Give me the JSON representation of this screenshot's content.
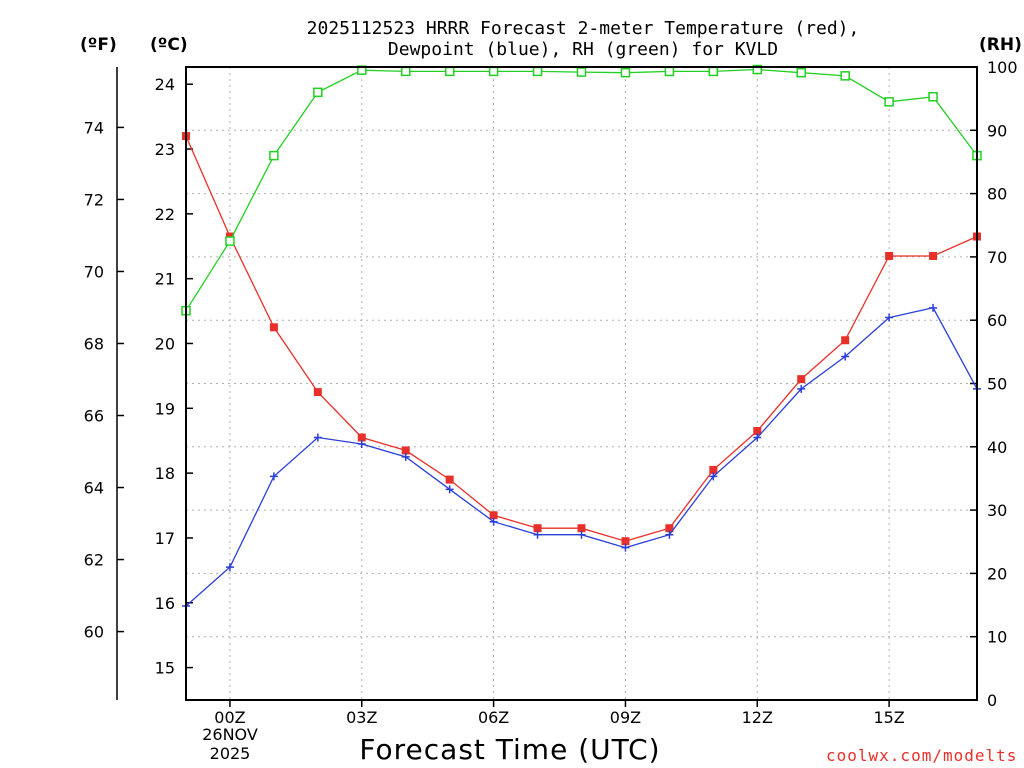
{
  "chart_data": {
    "type": "line",
    "title": "2025112523 HRRR Forecast 2-meter Temperature (red),",
    "subtitle": "Dewpoint (blue), RH (green) for KVLD",
    "xlabel": "Forecast Time (UTC)",
    "credit": "coolwx.com/modelts",
    "units": {
      "fahrenheit": "(ºF)",
      "celsius": "(ºC)",
      "rh": "(RH)"
    },
    "x_hours": [
      -1,
      0,
      1,
      2,
      3,
      4,
      5,
      6,
      7,
      8,
      9,
      10,
      11,
      12,
      13,
      14,
      15,
      16,
      17
    ],
    "x_tick_labels": [
      {
        "hour": 0,
        "label": "00Z"
      },
      {
        "hour": 3,
        "label": "03Z"
      },
      {
        "hour": 6,
        "label": "06Z"
      },
      {
        "hour": 9,
        "label": "09Z"
      },
      {
        "hour": 12,
        "label": "12Z"
      },
      {
        "hour": 15,
        "label": "15Z"
      }
    ],
    "date_label": {
      "day": "26NOV",
      "year": "2025"
    },
    "xlim": [
      -1,
      17
    ],
    "ylim_c": [
      14.5,
      24.25
    ],
    "ylim_f": [
      58.1,
      75.65
    ],
    "ylim_rh": [
      0,
      100
    ],
    "yticks_c": [
      15,
      16,
      17,
      18,
      19,
      20,
      21,
      22,
      23,
      24
    ],
    "yticks_f": [
      60,
      62,
      64,
      66,
      68,
      70,
      72,
      74
    ],
    "yticks_rh": [
      0,
      10,
      20,
      30,
      40,
      50,
      60,
      70,
      80,
      90,
      100
    ],
    "series": [
      {
        "name": "Temperature",
        "color": "#e8302a",
        "axis": "c",
        "marker": "filled-square",
        "values": [
          23.2,
          21.65,
          20.25,
          19.25,
          18.55,
          18.35,
          17.9,
          17.35,
          17.15,
          17.15,
          16.95,
          17.15,
          18.05,
          18.65,
          19.45,
          20.05,
          21.35,
          21.35,
          21.65
        ]
      },
      {
        "name": "Dewpoint",
        "color": "#2a3fd8",
        "axis": "c",
        "marker": "plus",
        "values": [
          15.95,
          16.55,
          17.95,
          18.55,
          18.45,
          18.25,
          17.75,
          17.25,
          17.05,
          17.05,
          16.85,
          17.05,
          17.95,
          18.55,
          19.3,
          19.8,
          20.4,
          20.55,
          19.3
        ]
      },
      {
        "name": "RH",
        "color": "#22d022",
        "axis": "rh",
        "marker": "open-square",
        "values": [
          61.5,
          72.5,
          86,
          96,
          99.5,
          99.3,
          99.3,
          99.3,
          99.3,
          99.2,
          99.1,
          99.3,
          99.3,
          99.6,
          99.1,
          98.6,
          94.5,
          95.3,
          86
        ]
      }
    ]
  }
}
